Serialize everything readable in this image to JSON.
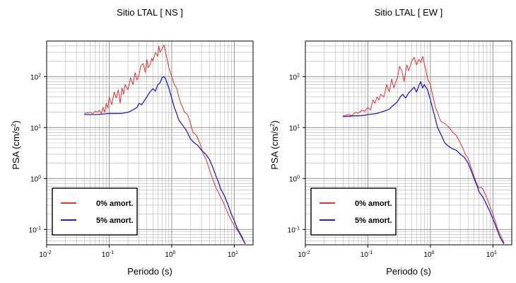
{
  "chart_data": [
    {
      "type": "line",
      "title": "Sitio LTAL [ NS ]",
      "xlabel": "Periodo (s)",
      "ylabel": "PSA (cm/s",
      "ylabel_sup": "2",
      "ylabel_close": ")",
      "x_scale": "log",
      "y_scale": "log",
      "xlim": [
        0.01,
        20
      ],
      "ylim": [
        0.05,
        500
      ],
      "x_ticks": [
        {
          "base": "10",
          "exp": "-2",
          "value": 0.01
        },
        {
          "base": "10",
          "exp": "-1",
          "value": 0.1
        },
        {
          "base": "10",
          "exp": "0",
          "value": 1
        },
        {
          "base": "10",
          "exp": "1",
          "value": 10
        }
      ],
      "y_ticks": [
        {
          "base": "10",
          "exp": "-1",
          "value": 0.1
        },
        {
          "base": "10",
          "exp": "0",
          "value": 1
        },
        {
          "base": "10",
          "exp": "1",
          "value": 10
        },
        {
          "base": "10",
          "exp": "2",
          "value": 100
        }
      ],
      "grid": true,
      "legend_position": "bottom-left",
      "series": [
        {
          "name": "0% amort.",
          "color": "#e8312f",
          "x": [
            0.04,
            0.05,
            0.055,
            0.06,
            0.065,
            0.07,
            0.075,
            0.08,
            0.085,
            0.09,
            0.095,
            0.1,
            0.11,
            0.12,
            0.13,
            0.14,
            0.15,
            0.16,
            0.17,
            0.18,
            0.2,
            0.22,
            0.24,
            0.26,
            0.28,
            0.3,
            0.32,
            0.35,
            0.38,
            0.4,
            0.42,
            0.45,
            0.48,
            0.5,
            0.55,
            0.6,
            0.62,
            0.65,
            0.7,
            0.75,
            0.8,
            0.9,
            1.0,
            1.1,
            1.2,
            1.3,
            1.4,
            1.5,
            1.6,
            1.8,
            2.0,
            2.2,
            2.5,
            2.8,
            3.0,
            3.2,
            3.5,
            4.0,
            4.5,
            5.0,
            6.0,
            7.0,
            8.0,
            9.0,
            10.0,
            11.0,
            12.0,
            13.0,
            15.0
          ],
          "y": [
            19,
            20,
            19,
            21,
            20,
            22,
            19,
            25,
            20,
            30,
            24,
            40,
            28,
            50,
            38,
            55,
            30,
            60,
            45,
            70,
            55,
            95,
            70,
            120,
            85,
            110,
            160,
            180,
            120,
            220,
            150,
            170,
            230,
            200,
            300,
            250,
            400,
            300,
            350,
            420,
            300,
            150,
            100,
            70,
            60,
            40,
            30,
            25,
            20,
            18,
            12,
            8,
            7,
            5,
            4,
            3,
            2.5,
            1.5,
            1.0,
            0.7,
            0.45,
            0.3,
            0.2,
            0.15,
            0.12,
            0.1,
            0.085,
            0.07,
            0.052
          ]
        },
        {
          "name": "5% amort.",
          "color": "#1f1fd1",
          "x": [
            0.04,
            0.05,
            0.06,
            0.07,
            0.08,
            0.09,
            0.1,
            0.12,
            0.14,
            0.16,
            0.18,
            0.2,
            0.22,
            0.25,
            0.28,
            0.3,
            0.33,
            0.36,
            0.4,
            0.45,
            0.5,
            0.55,
            0.6,
            0.65,
            0.7,
            0.75,
            0.8,
            0.9,
            1.0,
            1.1,
            1.2,
            1.3,
            1.5,
            1.7,
            2.0,
            2.3,
            2.6,
            3.0,
            3.5,
            4.0,
            4.5,
            5.0,
            5.5,
            6.0,
            7.0,
            8.0,
            9.0,
            10.0,
            11.0,
            12.0,
            13.0,
            15.0
          ],
          "y": [
            18,
            18,
            18,
            18.2,
            18.5,
            18.8,
            19,
            19,
            19,
            19,
            19.5,
            20,
            21,
            23,
            25,
            30,
            28,
            33,
            40,
            50,
            58,
            52,
            70,
            75,
            95,
            100,
            90,
            60,
            38,
            25,
            19,
            14,
            11,
            9,
            6,
            5,
            4.5,
            3.6,
            3.0,
            2.4,
            1.7,
            1.2,
            0.9,
            0.65,
            0.45,
            0.3,
            0.2,
            0.15,
            0.11,
            0.09,
            0.075,
            0.052
          ]
        }
      ]
    },
    {
      "type": "line",
      "title": "Sitio LTAL [ EW ]",
      "xlabel": "Periodo (s)",
      "ylabel": "PSA (cm/s",
      "ylabel_sup": "2",
      "ylabel_close": ")",
      "x_scale": "log",
      "y_scale": "log",
      "xlim": [
        0.01,
        20
      ],
      "ylim": [
        0.05,
        500
      ],
      "x_ticks": [
        {
          "base": "10",
          "exp": "-2",
          "value": 0.01
        },
        {
          "base": "10",
          "exp": "-1",
          "value": 0.1
        },
        {
          "base": "10",
          "exp": "0",
          "value": 1
        },
        {
          "base": "10",
          "exp": "1",
          "value": 10
        }
      ],
      "y_ticks": [
        {
          "base": "10",
          "exp": "-1",
          "value": 0.1
        },
        {
          "base": "10",
          "exp": "0",
          "value": 1
        },
        {
          "base": "10",
          "exp": "1",
          "value": 10
        },
        {
          "base": "10",
          "exp": "2",
          "value": 100
        }
      ],
      "grid": true,
      "legend_position": "bottom-left",
      "series": [
        {
          "name": "0% amort.",
          "color": "#e8312f",
          "x": [
            0.04,
            0.05,
            0.055,
            0.06,
            0.065,
            0.07,
            0.08,
            0.09,
            0.1,
            0.11,
            0.12,
            0.13,
            0.14,
            0.15,
            0.16,
            0.18,
            0.2,
            0.22,
            0.24,
            0.26,
            0.28,
            0.3,
            0.32,
            0.35,
            0.38,
            0.4,
            0.42,
            0.45,
            0.5,
            0.55,
            0.6,
            0.65,
            0.7,
            0.75,
            0.8,
            0.85,
            0.9,
            1.0,
            1.1,
            1.2,
            1.3,
            1.4,
            1.5,
            1.7,
            2.0,
            2.3,
            2.6,
            3.0,
            3.3,
            3.6,
            4.0,
            4.5,
            5.0,
            5.5,
            6.0,
            6.5,
            7.0,
            8.0,
            9.0,
            10.0,
            11.0,
            12.0,
            13.0,
            15.0
          ],
          "y": [
            17,
            18,
            17,
            19,
            20,
            19,
            22,
            21,
            25,
            22,
            35,
            30,
            40,
            35,
            45,
            40,
            70,
            50,
            90,
            60,
            80,
            100,
            160,
            130,
            80,
            120,
            170,
            130,
            200,
            240,
            170,
            220,
            190,
            250,
            180,
            130,
            90,
            70,
            40,
            25,
            20,
            15,
            13,
            12,
            10,
            8,
            7,
            5,
            4,
            3,
            2.5,
            1.6,
            1.1,
            0.8,
            0.65,
            0.68,
            0.6,
            0.42,
            0.28,
            0.2,
            0.14,
            0.1,
            0.08,
            0.055
          ]
        },
        {
          "name": "5% amort.",
          "color": "#1f1fd1",
          "x": [
            0.04,
            0.05,
            0.06,
            0.07,
            0.08,
            0.09,
            0.1,
            0.12,
            0.14,
            0.16,
            0.18,
            0.2,
            0.22,
            0.25,
            0.28,
            0.3,
            0.33,
            0.36,
            0.4,
            0.45,
            0.5,
            0.55,
            0.6,
            0.65,
            0.7,
            0.75,
            0.8,
            0.9,
            1.0,
            1.1,
            1.2,
            1.3,
            1.5,
            1.7,
            2.0,
            2.3,
            2.6,
            3.0,
            3.5,
            4.0,
            4.5,
            5.0,
            5.5,
            6.0,
            7.0,
            8.0,
            9.0,
            10.0,
            11.0,
            12.0,
            13.0,
            15.0
          ],
          "y": [
            16.5,
            16.7,
            17,
            17,
            17.2,
            17.5,
            18,
            18.5,
            19,
            20,
            21,
            22,
            23,
            27,
            30,
            33,
            40,
            45,
            38,
            48,
            55,
            62,
            50,
            65,
            80,
            60,
            70,
            55,
            35,
            22,
            15,
            10,
            7,
            5,
            4.2,
            3.8,
            3.6,
            3.0,
            2.6,
            2.0,
            1.4,
            1.0,
            0.75,
            0.55,
            0.42,
            0.3,
            0.22,
            0.16,
            0.12,
            0.09,
            0.07,
            0.052
          ]
        }
      ]
    }
  ]
}
